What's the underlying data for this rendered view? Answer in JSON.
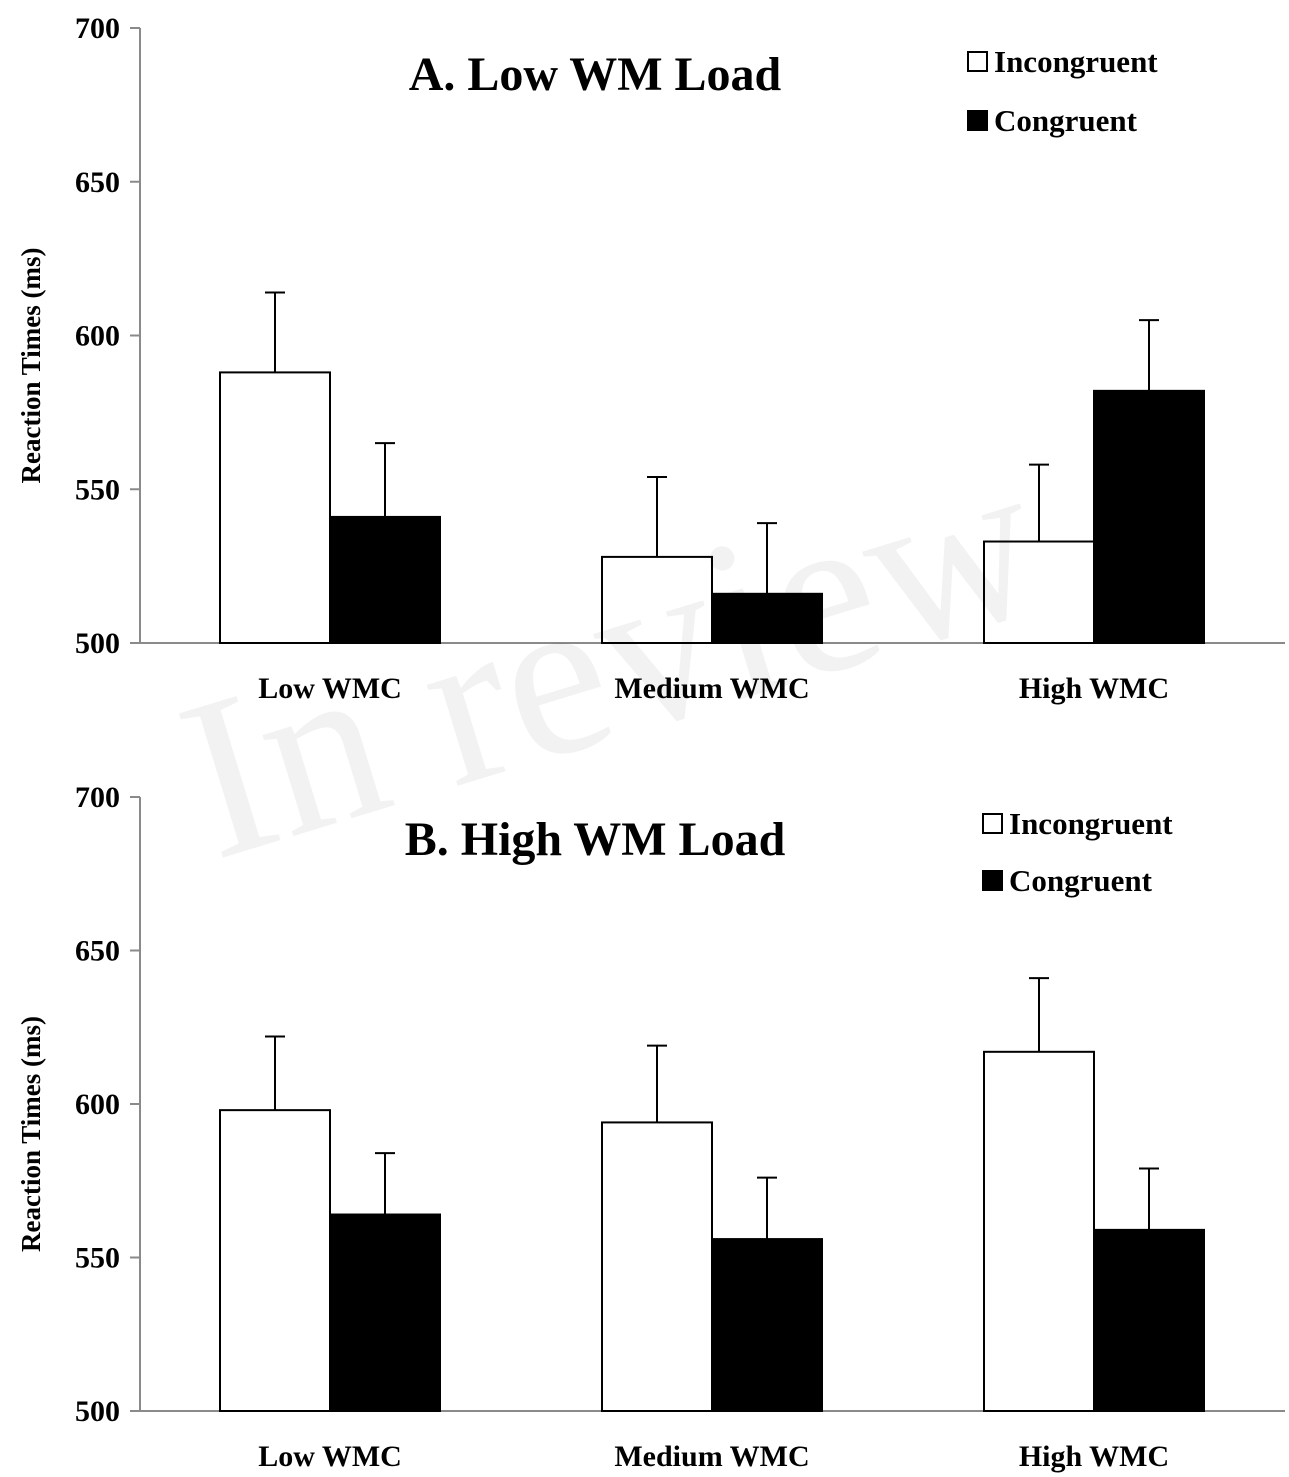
{
  "watermark": "In review",
  "chart_data": [
    {
      "type": "bar",
      "title": "A. Low WM Load",
      "xlabel": "",
      "ylabel": "Reaction Times  (ms)",
      "ylim": [
        500,
        700
      ],
      "yticks": [
        "500",
        "550",
        "600",
        "650",
        "700"
      ],
      "categories": [
        "Low WMC",
        "Medium WMC",
        "High WMC"
      ],
      "series": [
        {
          "name": "Incongruent",
          "color": "#ffffff",
          "values": [
            588,
            528,
            533
          ],
          "errors": [
            26,
            26,
            25
          ]
        },
        {
          "name": "Congruent",
          "color": "#000000",
          "values": [
            541,
            516,
            582
          ],
          "errors": [
            24,
            23,
            23
          ]
        }
      ],
      "legend_position": "top-right",
      "grid": false
    },
    {
      "type": "bar",
      "title": "B. High WM Load",
      "xlabel": "",
      "ylabel": "Reaction Times  (ms)",
      "ylim": [
        500,
        700
      ],
      "yticks": [
        "500",
        "550",
        "600",
        "650",
        "700"
      ],
      "categories": [
        "Low WMC",
        "Medium WMC",
        "High WMC"
      ],
      "series": [
        {
          "name": "Incongruent",
          "color": "#ffffff",
          "values": [
            598,
            594,
            617
          ],
          "errors": [
            24,
            25,
            24
          ]
        },
        {
          "name": "Congruent",
          "color": "#000000",
          "values": [
            564,
            556,
            559
          ],
          "errors": [
            20,
            20,
            20
          ]
        }
      ],
      "legend_position": "top-right",
      "grid": false
    }
  ]
}
